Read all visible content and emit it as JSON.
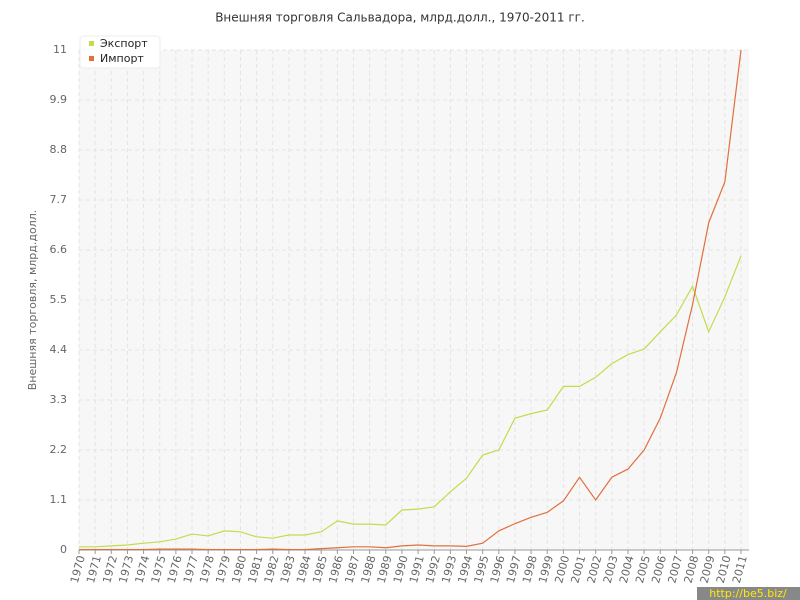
{
  "chart_data": {
    "type": "line",
    "title": "Внешняя торговля Сальвадора, млрд.долл., 1970-2011 гг.",
    "y_label": "Внешняя торговля, млрд.долл.",
    "watermark": "http://be5.biz/",
    "categories": [
      "1970",
      "1971",
      "1972",
      "1973",
      "1974",
      "1975",
      "1976",
      "1977",
      "1978",
      "1979",
      "1980",
      "1981",
      "1982",
      "1983",
      "1984",
      "1985",
      "1986",
      "1987",
      "1988",
      "1989",
      "1990",
      "1991",
      "1992",
      "1993",
      "1994",
      "1995",
      "1996",
      "1997",
      "1998",
      "1999",
      "2000",
      "2001",
      "2002",
      "2003",
      "2004",
      "2005",
      "2006",
      "2007",
      "2008",
      "2009",
      "2010",
      "2011"
    ],
    "series": [
      {
        "name": "Экспорт",
        "color": "#c2dc4c",
        "values": [
          0.07,
          0.07,
          0.09,
          0.11,
          0.15,
          0.18,
          0.24,
          0.35,
          0.31,
          0.42,
          0.4,
          0.29,
          0.26,
          0.33,
          0.33,
          0.4,
          0.64,
          0.57,
          0.57,
          0.55,
          0.88,
          0.9,
          0.95,
          1.28,
          1.58,
          2.09,
          2.2,
          2.9,
          3.0,
          3.08,
          3.6,
          3.6,
          3.8,
          4.1,
          4.3,
          4.42,
          4.8,
          5.17,
          5.8,
          4.8,
          5.57,
          6.47
        ]
      },
      {
        "name": "Импорт",
        "color": "#e0703e",
        "values": [
          0.01,
          0.01,
          0.01,
          0.01,
          0.01,
          0.02,
          0.02,
          0.02,
          0.01,
          0.01,
          0.01,
          0.01,
          0.02,
          0.01,
          0.01,
          0.03,
          0.05,
          0.07,
          0.07,
          0.05,
          0.09,
          0.11,
          0.09,
          0.09,
          0.08,
          0.15,
          0.42,
          0.58,
          0.72,
          0.83,
          1.08,
          1.6,
          1.1,
          1.6,
          1.78,
          2.2,
          2.9,
          3.9,
          5.4,
          7.2,
          8.1,
          11.0
        ]
      }
    ],
    "ylim": [
      0,
      11
    ],
    "yticks": [
      0,
      1.1,
      2.2,
      3.3,
      4.4,
      5.5,
      6.6,
      7.7,
      8.8,
      9.9,
      11
    ],
    "grid": true,
    "legend": "top-left"
  }
}
